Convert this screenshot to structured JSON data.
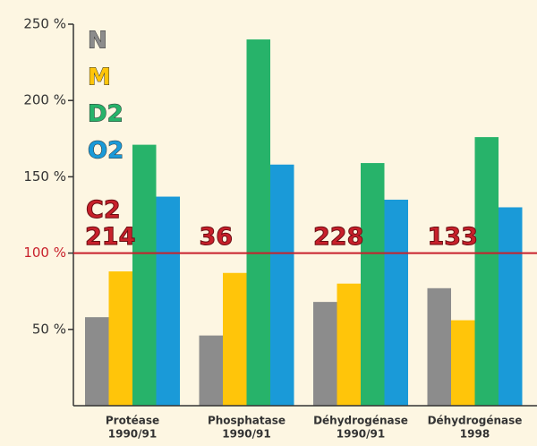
{
  "chart_data": {
    "type": "bar",
    "categories": [
      [
        "Protéase",
        "1990/91"
      ],
      [
        "Phosphatase",
        "1990/91"
      ],
      [
        "Déhydrogénase",
        "1990/91"
      ],
      [
        "Déhydrogénase",
        "1998"
      ]
    ],
    "series": [
      {
        "name": "N",
        "color": "#8c8c8c",
        "values": [
          58,
          46,
          68,
          77
        ]
      },
      {
        "name": "M",
        "color": "#ffc50a",
        "values": [
          88,
          87,
          80,
          56
        ]
      },
      {
        "name": "D2",
        "color": "#27b36a",
        "values": [
          171,
          240,
          159,
          176
        ]
      },
      {
        "name": "O2",
        "color": "#1a9ad8",
        "values": [
          137,
          158,
          135,
          130
        ]
      }
    ],
    "reference": {
      "name": "C2",
      "value": 100,
      "color": "#c8202b",
      "labels": [
        "214",
        "36",
        "228",
        "133"
      ]
    },
    "ylim": [
      0,
      250
    ],
    "yticks": [
      {
        "value": 50,
        "label": "50 %"
      },
      {
        "value": 100,
        "label": "100 %"
      },
      {
        "value": 150,
        "label": "150 %"
      },
      {
        "value": 200,
        "label": "200 %"
      },
      {
        "value": 250,
        "label": "250 %"
      }
    ]
  }
}
